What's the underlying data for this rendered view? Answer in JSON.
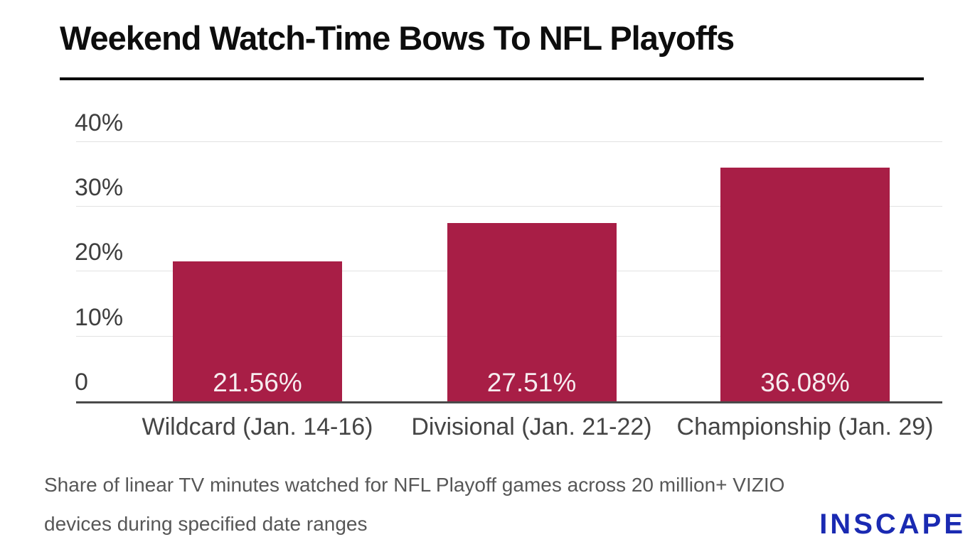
{
  "title": "Weekend Watch-Time Bows To NFL Playoffs",
  "chart_data": {
    "type": "bar",
    "categories": [
      "Wildcard (Jan. 14-16)",
      "Divisional (Jan. 21-22)",
      "Championship (Jan. 29)"
    ],
    "values": [
      21.56,
      27.51,
      36.08
    ],
    "value_labels": [
      "21.56%",
      "27.51%",
      "36.08%"
    ],
    "y_ticks": [
      {
        "value": 0,
        "label": "0"
      },
      {
        "value": 10,
        "label": "10%"
      },
      {
        "value": 20,
        "label": "20%"
      },
      {
        "value": 30,
        "label": "30%"
      },
      {
        "value": 40,
        "label": "40%"
      }
    ],
    "ylim": [
      0,
      40
    ],
    "xlabel": "",
    "ylabel": "",
    "grid": true,
    "legend": false,
    "bar_color": "#a81e46",
    "value_label_color": "#f6ecef",
    "title": "Weekend Watch-Time Bows To NFL Playoffs"
  },
  "footnote": {
    "lines": [
      "Share of linear TV minutes watched for NFL Playoff games across 20 million+ VIZIO",
      "devices during specified date ranges"
    ]
  },
  "logo": {
    "text": "INSCAPE",
    "color": "#1a2ab2"
  }
}
